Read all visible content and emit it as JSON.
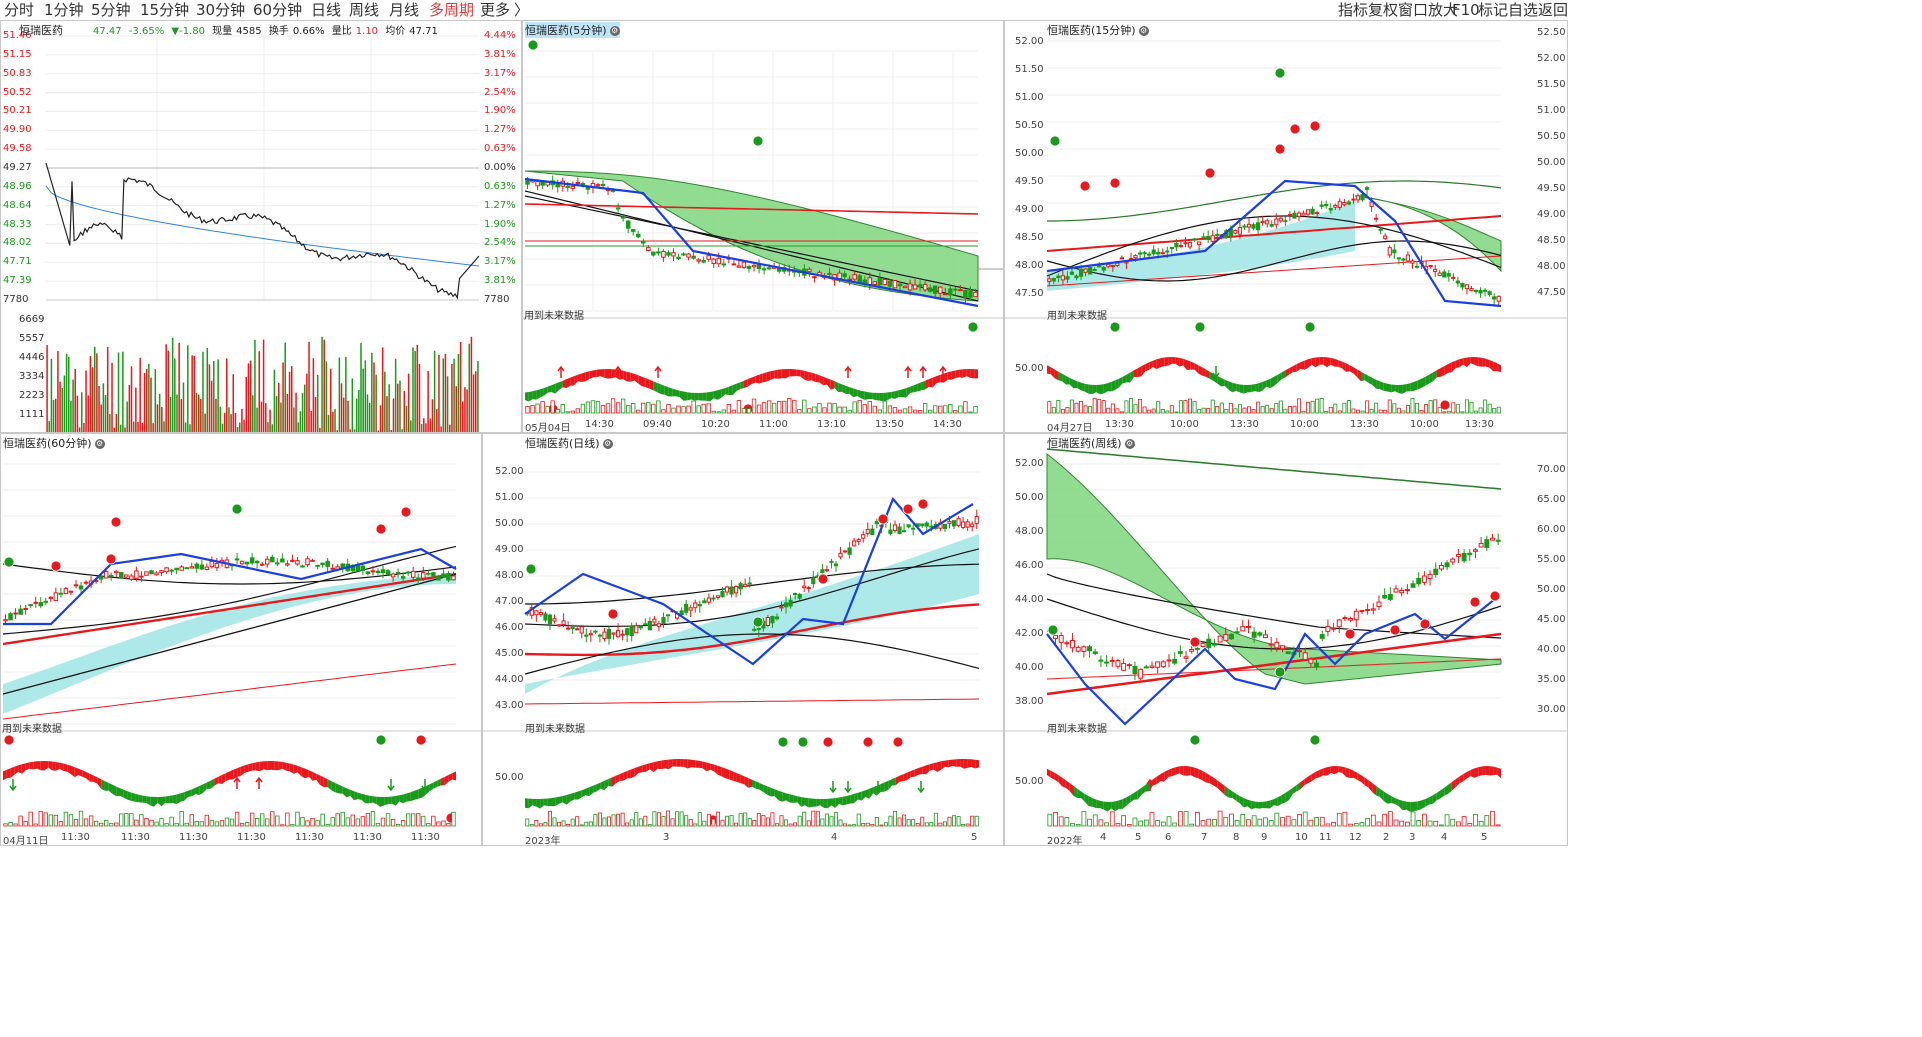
{
  "toolbar": {
    "periods": [
      "分时",
      "1分钟",
      "5分钟",
      "15分钟",
      "30分钟",
      "60分钟",
      "日线",
      "周线",
      "月线",
      "多周期",
      "更多"
    ],
    "more_arrow": "〉",
    "right_items": [
      "指标",
      "复权",
      "窗口放大",
      "F10",
      "标记",
      "自选",
      "返回"
    ]
  },
  "colors": {
    "up": "#e8191d",
    "down": "#1a9a1a",
    "ma": "#1a3fe0",
    "fill_green": "#7ed67e",
    "fill_cyan": "#a8e6e6"
  },
  "intraday": {
    "name": "恒瑞医药",
    "price": "47.47",
    "change_pct": "-3.65%",
    "change": "▼-1.80",
    "volume_label": "现量",
    "volume": "4585",
    "turnover_label": "换手",
    "turnover": "0.66%",
    "ratio_label": "量比",
    "ratio": "1.10",
    "avg_label": "均价",
    "avg": "47.71",
    "left_axis": [
      "51.46",
      "51.15",
      "50.83",
      "50.52",
      "50.21",
      "49.90",
      "49.58",
      "49.27",
      "48.96",
      "48.64",
      "48.33",
      "48.02",
      "47.71",
      "47.39",
      "7780"
    ],
    "right_axis": [
      "4.44%",
      "3.81%",
      "3.17%",
      "2.54%",
      "1.90%",
      "1.27%",
      "0.63%",
      "0.00%",
      "0.63%",
      "1.27%",
      "1.90%",
      "2.54%",
      "3.17%",
      "3.81%",
      "7780"
    ],
    "vol_axis": [
      "6669",
      "5557",
      "4446",
      "3334",
      "2223",
      "1111"
    ]
  },
  "panels": {
    "p5": {
      "title": "恒瑞医药(5分钟)",
      "axis": [],
      "future": "用到未来数据",
      "times": [
        "05月04日",
        "14:30",
        "09:40",
        "10:20",
        "11:00",
        "13:10",
        "13:50",
        "14:30"
      ]
    },
    "p15": {
      "title": "恒瑞医药(15分钟)",
      "axis": [
        "52.00",
        "51.50",
        "51.00",
        "50.50",
        "50.00",
        "49.50",
        "49.00",
        "48.50",
        "48.00",
        "47.50",
        "50.00"
      ],
      "right_axis": [
        "52.50",
        "52.00",
        "51.50",
        "51.00",
        "50.50",
        "50.00",
        "49.50",
        "49.00",
        "48.50",
        "48.00",
        "47.50"
      ],
      "future": "用到未来数据",
      "times": [
        "04月27日",
        "13:30",
        "10:00",
        "13:30",
        "10:00",
        "13:30",
        "10:00",
        "13:30"
      ]
    },
    "p60": {
      "title": "恒瑞医药(60分钟)",
      "future": "用到未来数据",
      "times": [
        "04月11日",
        "11:30",
        "11:30",
        "11:30",
        "11:30",
        "11:30",
        "11:30",
        "11:30"
      ]
    },
    "pday": {
      "title": "恒瑞医药(日线)",
      "axis": [
        "52.00",
        "51.00",
        "50.00",
        "49.00",
        "48.00",
        "47.00",
        "46.00",
        "45.00",
        "44.00",
        "43.00",
        "50.00"
      ],
      "future": "用到未来数据",
      "times": [
        "2023年",
        "3",
        "4",
        "5"
      ]
    },
    "pweek": {
      "title": "恒瑞医药(周线)",
      "axis": [
        "52.00",
        "50.00",
        "48.00",
        "46.00",
        "44.00",
        "42.00",
        "40.00",
        "38.00",
        "50.00"
      ],
      "right_axis": [
        "70.00",
        "65.00",
        "60.00",
        "55.00",
        "50.00",
        "45.00",
        "40.00",
        "35.00",
        "30.00"
      ],
      "future": "用到未来数据",
      "times": [
        "2022年",
        "4",
        "5",
        "6",
        "7",
        "8",
        "9",
        "10",
        "11",
        "12",
        "2",
        "3",
        "4",
        "5"
      ]
    }
  }
}
